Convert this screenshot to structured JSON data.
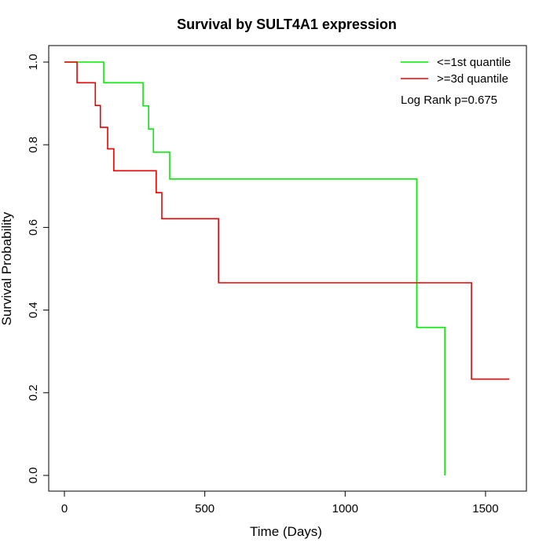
{
  "chart_data": {
    "type": "line",
    "title": "Survival by SULT4A1 expression",
    "xlabel": "Time (Days)",
    "ylabel": "Survival Probability",
    "xlim": [
      0,
      1650
    ],
    "ylim": [
      0,
      1.0
    ],
    "xticks": [
      0,
      500,
      1000,
      1500
    ],
    "yticks": [
      "0.0",
      "0.2",
      "0.4",
      "0.6",
      "0.8",
      "1.0"
    ],
    "annotation": "Log Rank p=0.675",
    "legend_position": "top-right",
    "series": [
      {
        "name": "<=1st quantile",
        "color": "#00ee00",
        "steps": [
          [
            0,
            1.0
          ],
          [
            140,
            0.95
          ],
          [
            280,
            0.894
          ],
          [
            300,
            0.838
          ],
          [
            317,
            0.782
          ],
          [
            375,
            0.717
          ],
          [
            1255,
            0.358
          ],
          [
            1355,
            0.0
          ]
        ],
        "end": 1355
      },
      {
        "name": ">=3d quantile",
        "color": "#ee0000",
        "steps": [
          [
            0,
            1.0
          ],
          [
            45,
            0.95
          ],
          [
            110,
            0.895
          ],
          [
            128,
            0.842
          ],
          [
            154,
            0.79
          ],
          [
            176,
            0.737
          ],
          [
            327,
            0.684
          ],
          [
            347,
            0.621
          ],
          [
            549,
            0.466
          ],
          [
            1450,
            0.233
          ]
        ],
        "end": 1585
      }
    ]
  }
}
